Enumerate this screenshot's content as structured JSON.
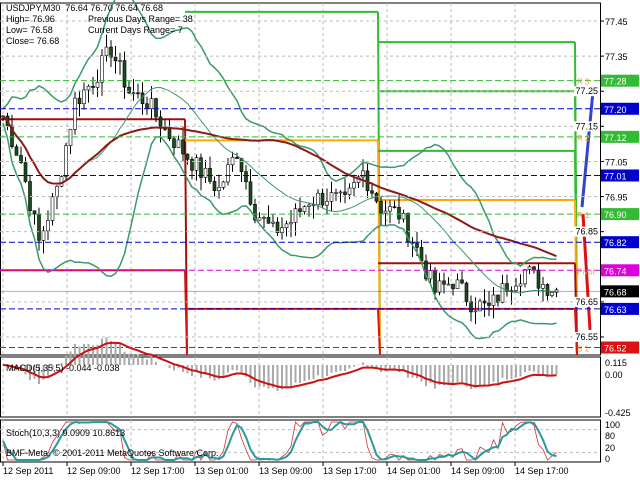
{
  "header": {
    "symbol_line": "USDJPY,M30  76.64 76.70 76.64 76.68",
    "high": "High= 76.96",
    "low": "Low= 76.58",
    "close": "Close= 76.68",
    "prev_range": "Previous Days Range= 38",
    "cur_range": "Current Days Range= 7"
  },
  "colors": {
    "candle_up": "#ffffff",
    "candle_down": "#1a4d1a",
    "bands": "#3a9a6a",
    "ma": "#8b1a1a",
    "resistance": "#33bb33",
    "support": "#dd1111",
    "mid": "#000080",
    "pivot": "#dd00dd",
    "macd_signal": "#cc1111",
    "stoch": "#2a9a9a"
  },
  "chart_data": [
    {
      "type": "candlestick",
      "title": "USDJPY,M30",
      "ylim": [
        76.5,
        77.5
      ],
      "price_ticks": [
        "77.45",
        "77.35",
        "77.25",
        "77.15",
        "77.05",
        "76.95",
        "76.85",
        "76.65",
        "76.55"
      ],
      "time_ticks": [
        "12 Sep 2011",
        "12 Sep 09:00",
        "12 Sep 17:00",
        "13 Sep 01:00",
        "13 Sep 09:00",
        "13 Sep 17:00",
        "14 Sep 01:00",
        "14 Sep 09:00",
        "14 Sep 17:00"
      ],
      "approx_close_every_2h": [
        77.18,
        77.05,
        76.82,
        76.97,
        77.22,
        77.28,
        77.37,
        77.25,
        77.22,
        77.14,
        77.08,
        77.02,
        76.97,
        77.08,
        76.91,
        76.85,
        76.88,
        76.94,
        76.95,
        76.93,
        77.02,
        76.92,
        76.9,
        76.8,
        76.68,
        76.71,
        76.65,
        76.63,
        76.7,
        76.74,
        76.7,
        76.68
      ],
      "levels": [
        {
          "label": "R 3",
          "value": "77.28",
          "color": "#33bb33"
        },
        {
          "label": "",
          "value": "77.20",
          "color": "#0000cc"
        },
        {
          "label": "R 2",
          "value": "77.12",
          "color": "#33bb33"
        },
        {
          "label": "",
          "value": "77.01",
          "color": "#0000cc"
        },
        {
          "label": "R 1",
          "value": "76.90",
          "color": "#33bb33"
        },
        {
          "label": "",
          "value": "76.82",
          "color": "#0000cc"
        },
        {
          "label": "Pivot",
          "value": "76.74",
          "color": "#dd00dd"
        },
        {
          "label": "",
          "value": "76.68",
          "color": "#000000"
        },
        {
          "label": "",
          "value": "76.63",
          "color": "#0000cc"
        },
        {
          "label": "S 1",
          "value": "76.52",
          "color": "#dd1111"
        }
      ],
      "daily_levels": [
        {
          "day": "12 Sep",
          "lines": [
            {
              "color": "#a01010",
              "value": 77.17
            },
            {
              "color": "#dd1111",
              "value": 76.74
            }
          ]
        },
        {
          "day": "13 Sep",
          "lines": [
            {
              "color": "#33bb33",
              "value": 77.476
            },
            {
              "color": "#ffaa00",
              "value": 77.11
            },
            {
              "color": "#dd1111",
              "value": 76.63
            }
          ]
        },
        {
          "day": "14 Sep",
          "lines": [
            {
              "color": "#33bb33",
              "value": 77.39
            },
            {
              "color": "#33bb33",
              "value": 77.25
            },
            {
              "color": "#33bb33",
              "value": 77.08
            },
            {
              "color": "#ffaa00",
              "value": 76.94
            },
            {
              "color": "#a01010",
              "value": 76.76
            },
            {
              "color": "#dd1111",
              "value": 76.63
            }
          ]
        }
      ]
    },
    {
      "type": "bar",
      "title": "MACD(5,35,5) -0.044 -0.038",
      "y_ticks": [
        "0.115",
        "0.00",
        "-0.425"
      ],
      "ylim": [
        -0.425,
        0.115
      ]
    },
    {
      "type": "line",
      "title": "Stoch(10,3,3) 9.0909 10.8613",
      "y_ticks": [
        "100",
        "80",
        "20",
        "0"
      ],
      "ylim": [
        0,
        100
      ]
    }
  ],
  "footer": {
    "copyright": "BMF-Meta, © 2001-2011 MetaQuotes Software Corp."
  }
}
